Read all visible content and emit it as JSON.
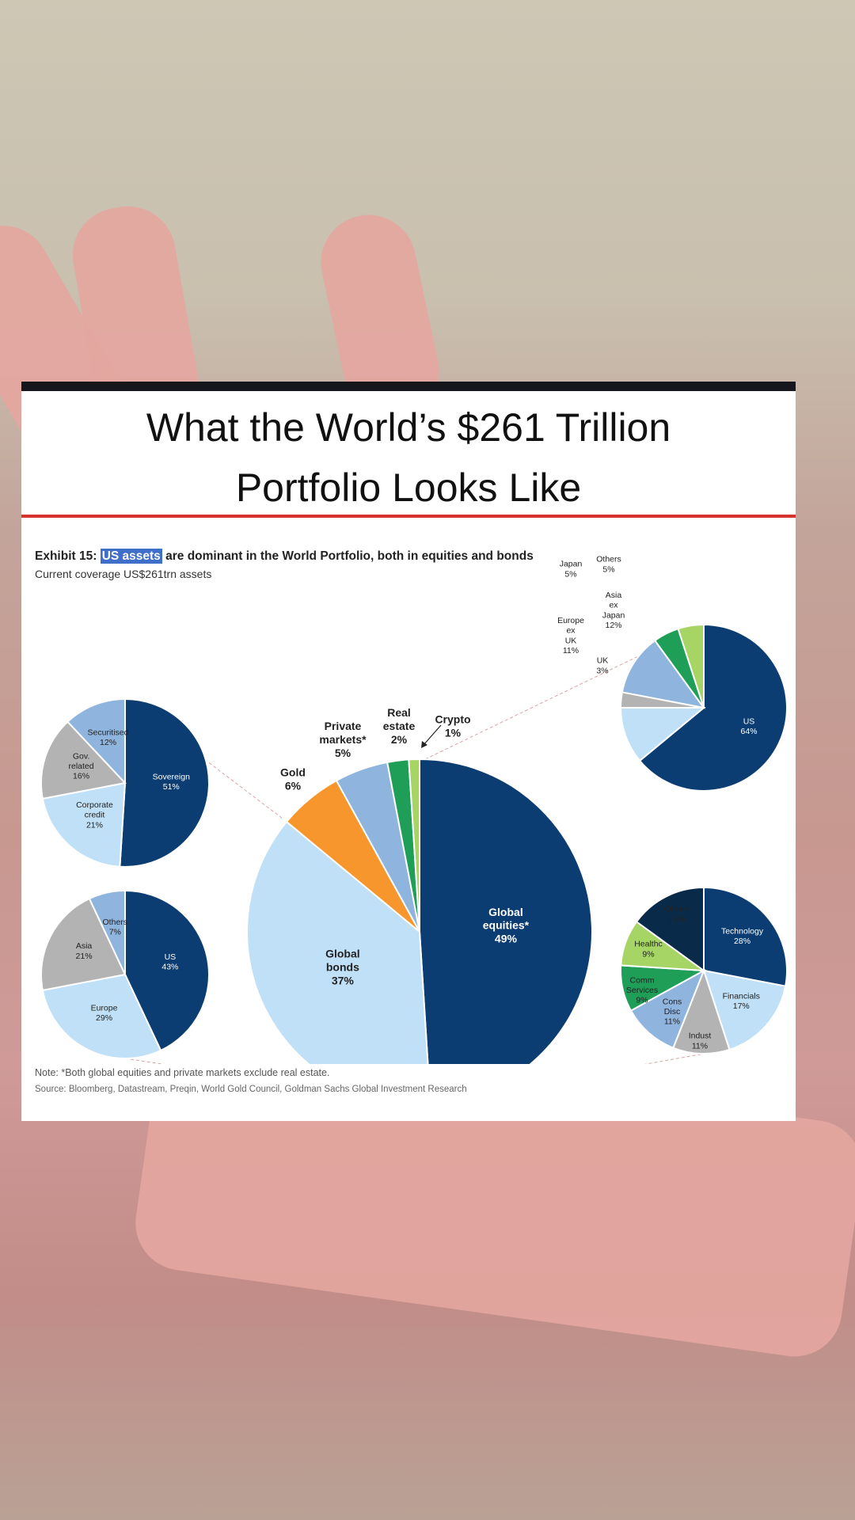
{
  "header": {
    "title_line1": "What the World’s $261 Trillion",
    "title_line2": "Portfolio Looks Like"
  },
  "exhibit": {
    "label": "Exhibit 15:",
    "highlight": "US assets",
    "rest": " are dominant in the World Portfolio, both in equities and bonds",
    "subtitle": "Current coverage US$261trn assets"
  },
  "note": "Note: *Both global equities and private markets exclude real estate.",
  "source": "Source: Bloomberg, Datastream, Preqin, World Gold Council, Goldman Sachs Global Investment Research",
  "colors": {
    "navy": "#0b3d72",
    "light_blue": "#bfe0f6",
    "mid_blue": "#8fb4de",
    "gray": "#b3b3b3",
    "orange": "#f7962c",
    "green": "#1f9e58",
    "lime": "#a6d565",
    "dark_navy": "#0a2a4a",
    "accent_red": "#d6322e"
  },
  "chart_data": [
    {
      "type": "pie",
      "title": "World Portfolio",
      "slices": [
        {
          "label": "Global equities*",
          "value": 49,
          "color": "#0b3d72"
        },
        {
          "label": "Global bonds",
          "value": 37,
          "color": "#bfe0f6"
        },
        {
          "label": "Gold",
          "value": 6,
          "color": "#f7962c"
        },
        {
          "label": "Private markets*",
          "value": 5,
          "color": "#8fb4de"
        },
        {
          "label": "Real estate",
          "value": 2,
          "color": "#1f9e58"
        },
        {
          "label": "Crypto",
          "value": 1,
          "color": "#a6d565"
        }
      ]
    },
    {
      "type": "pie",
      "slices": [
        {
          "label": "Sovereign",
          "value": 51,
          "color": "#0b3d72"
        },
        {
          "label": "Corporate credit",
          "value": 21,
          "color": "#bfe0f6"
        },
        {
          "label": "Gov. related",
          "value": 16,
          "color": "#b3b3b3"
        },
        {
          "label": "Securitised",
          "value": 12,
          "color": "#8fb4de"
        }
      ]
    },
    {
      "type": "pie",
      "slices": [
        {
          "label": "US",
          "value": 43,
          "color": "#0b3d72"
        },
        {
          "label": "Europe",
          "value": 29,
          "color": "#bfe0f6"
        },
        {
          "label": "Asia",
          "value": 21,
          "color": "#b3b3b3"
        },
        {
          "label": "Others",
          "value": 7,
          "color": "#8fb4de"
        }
      ]
    },
    {
      "type": "pie",
      "slices": [
        {
          "label": "US",
          "value": 64,
          "color": "#0b3d72"
        },
        {
          "label": "Europe ex UK",
          "value": 11,
          "color": "#bfe0f6"
        },
        {
          "label": "UK",
          "value": 3,
          "color": "#b3b3b3"
        },
        {
          "label": "Asia ex Japan",
          "value": 12,
          "color": "#8fb4de"
        },
        {
          "label": "Japan",
          "value": 5,
          "color": "#1f9e58"
        },
        {
          "label": "Others",
          "value": 5,
          "color": "#a6d565"
        }
      ]
    },
    {
      "type": "pie",
      "slices": [
        {
          "label": "Technology",
          "value": 28,
          "color": "#0b3d72"
        },
        {
          "label": "Financials",
          "value": 17,
          "color": "#bfe0f6"
        },
        {
          "label": "Indust",
          "value": 11,
          "color": "#b3b3b3"
        },
        {
          "label": "Cons Disc",
          "value": 11,
          "color": "#8fb4de"
        },
        {
          "label": "Comm Services",
          "value": 9,
          "color": "#1f9e58"
        },
        {
          "label": "Healthc",
          "value": 9,
          "color": "#a6d565"
        },
        {
          "label": "Others",
          "value": 15,
          "color": "#0a2a4a"
        }
      ]
    }
  ]
}
